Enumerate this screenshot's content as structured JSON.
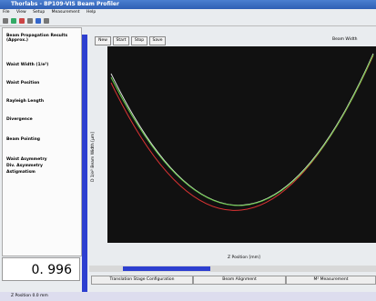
{
  "window": {
    "title": "Thorlabs - BP109-VIS Beam Profiler"
  },
  "menu": [
    "File",
    "View",
    "Setup",
    "Measurement",
    "Help"
  ],
  "left_panel": {
    "heading": "Beam Propagation Results (Approx.)",
    "rows": [
      "Waist Width (1/e²)",
      "Waist Position",
      "Rayleigh Length",
      "Divergence",
      "Beam Pointing",
      "Waist Asymmetry",
      "Div. Asymmetry",
      "Astigmatism"
    ],
    "m2_value": "0. 996"
  },
  "toolbar": {
    "buttons": [
      "New",
      "Start",
      "Stop",
      "Save"
    ],
    "legend": "Beam Width"
  },
  "plot": {
    "y_label": "D 1/e² Beam Width [µm]",
    "x_label": "Z Position [mm]"
  },
  "tabs": [
    "Translation Stage Configuration",
    "Beam Alignment",
    "M² Measurement"
  ],
  "status": "Z Position 0.0 mm"
}
